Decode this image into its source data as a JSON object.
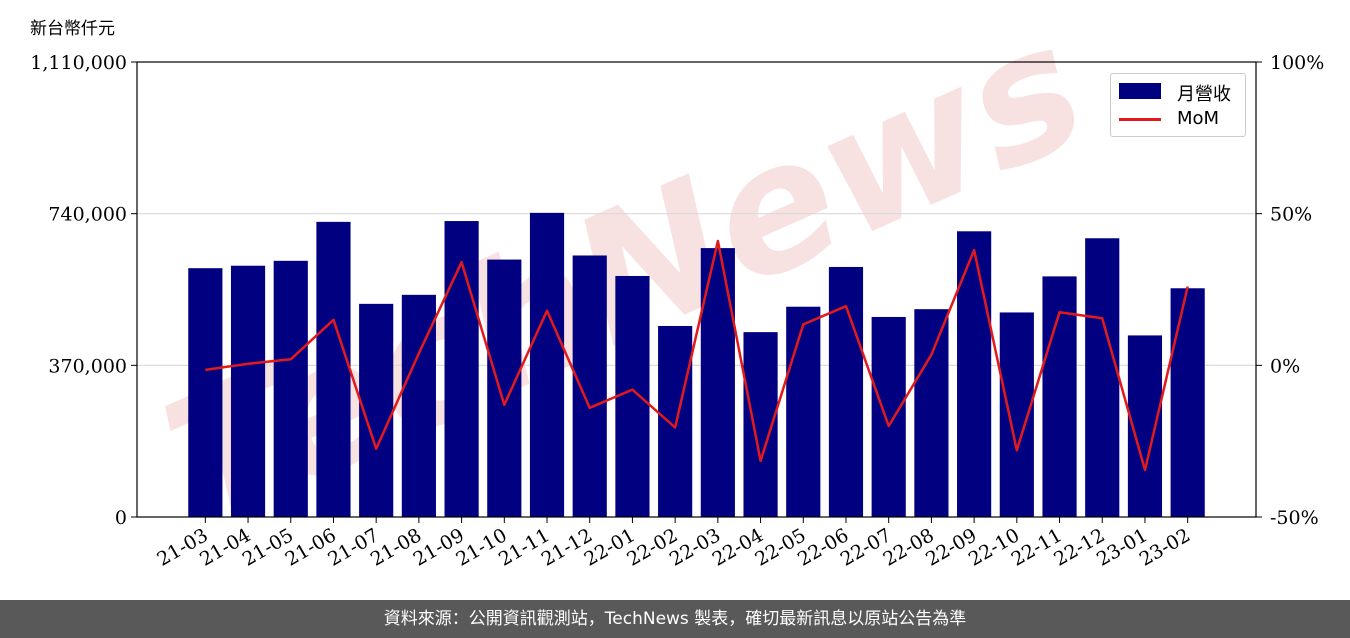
{
  "unit_label": "新台幣仟元",
  "footer_text": "資料來源：公開資訊觀測站，TechNews 製表，確切最新訊息以原站公告為準",
  "watermark_text": "TechNews",
  "colors": {
    "bar": "#000080",
    "line": "#e31a1c",
    "grid": "#d9d9d9",
    "watermark": "#f2c9c9"
  },
  "chart_data": {
    "type": "bar",
    "categories": [
      "21-03",
      "21-04",
      "21-05",
      "21-06",
      "21-07",
      "21-08",
      "21-09",
      "21-10",
      "21-11",
      "21-12",
      "22-01",
      "22-02",
      "22-03",
      "22-04",
      "22-05",
      "22-06",
      "22-07",
      "22-08",
      "22-09",
      "22-10",
      "22-11",
      "22-12",
      "23-01",
      "23-02"
    ],
    "series": [
      {
        "name": "月營收",
        "axis": "left",
        "type": "bar",
        "values": [
          607000,
          613000,
          625000,
          720000,
          520000,
          542000,
          722000,
          628000,
          742000,
          638000,
          588000,
          466000,
          656000,
          451000,
          513000,
          610000,
          488000,
          507000,
          697000,
          499000,
          587000,
          680000,
          443000,
          558000
        ]
      },
      {
        "name": "MoM",
        "axis": "right",
        "type": "line",
        "unit": "%",
        "values": [
          -1.5,
          0.5,
          2.0,
          15.0,
          -27.5,
          4.0,
          34.0,
          -13.0,
          18.0,
          -14.0,
          -8.0,
          -20.5,
          41.0,
          -31.5,
          13.5,
          19.5,
          -20.0,
          3.5,
          38.0,
          -28.0,
          17.5,
          15.5,
          -34.5,
          26.0
        ]
      }
    ],
    "y_left": {
      "ylim": [
        0,
        1110000
      ],
      "ticks": [
        "0",
        "370,000",
        "740,000",
        "1,110,000"
      ],
      "tick_values": [
        0,
        370000,
        740000,
        1110000
      ]
    },
    "y_right": {
      "ylim": [
        -50,
        100
      ],
      "ticks": [
        "-50%",
        "0%",
        "50%",
        "100%"
      ],
      "tick_values": [
        -50,
        0,
        50,
        100
      ]
    },
    "grid": "horizontal",
    "legend_position": "top-right"
  }
}
